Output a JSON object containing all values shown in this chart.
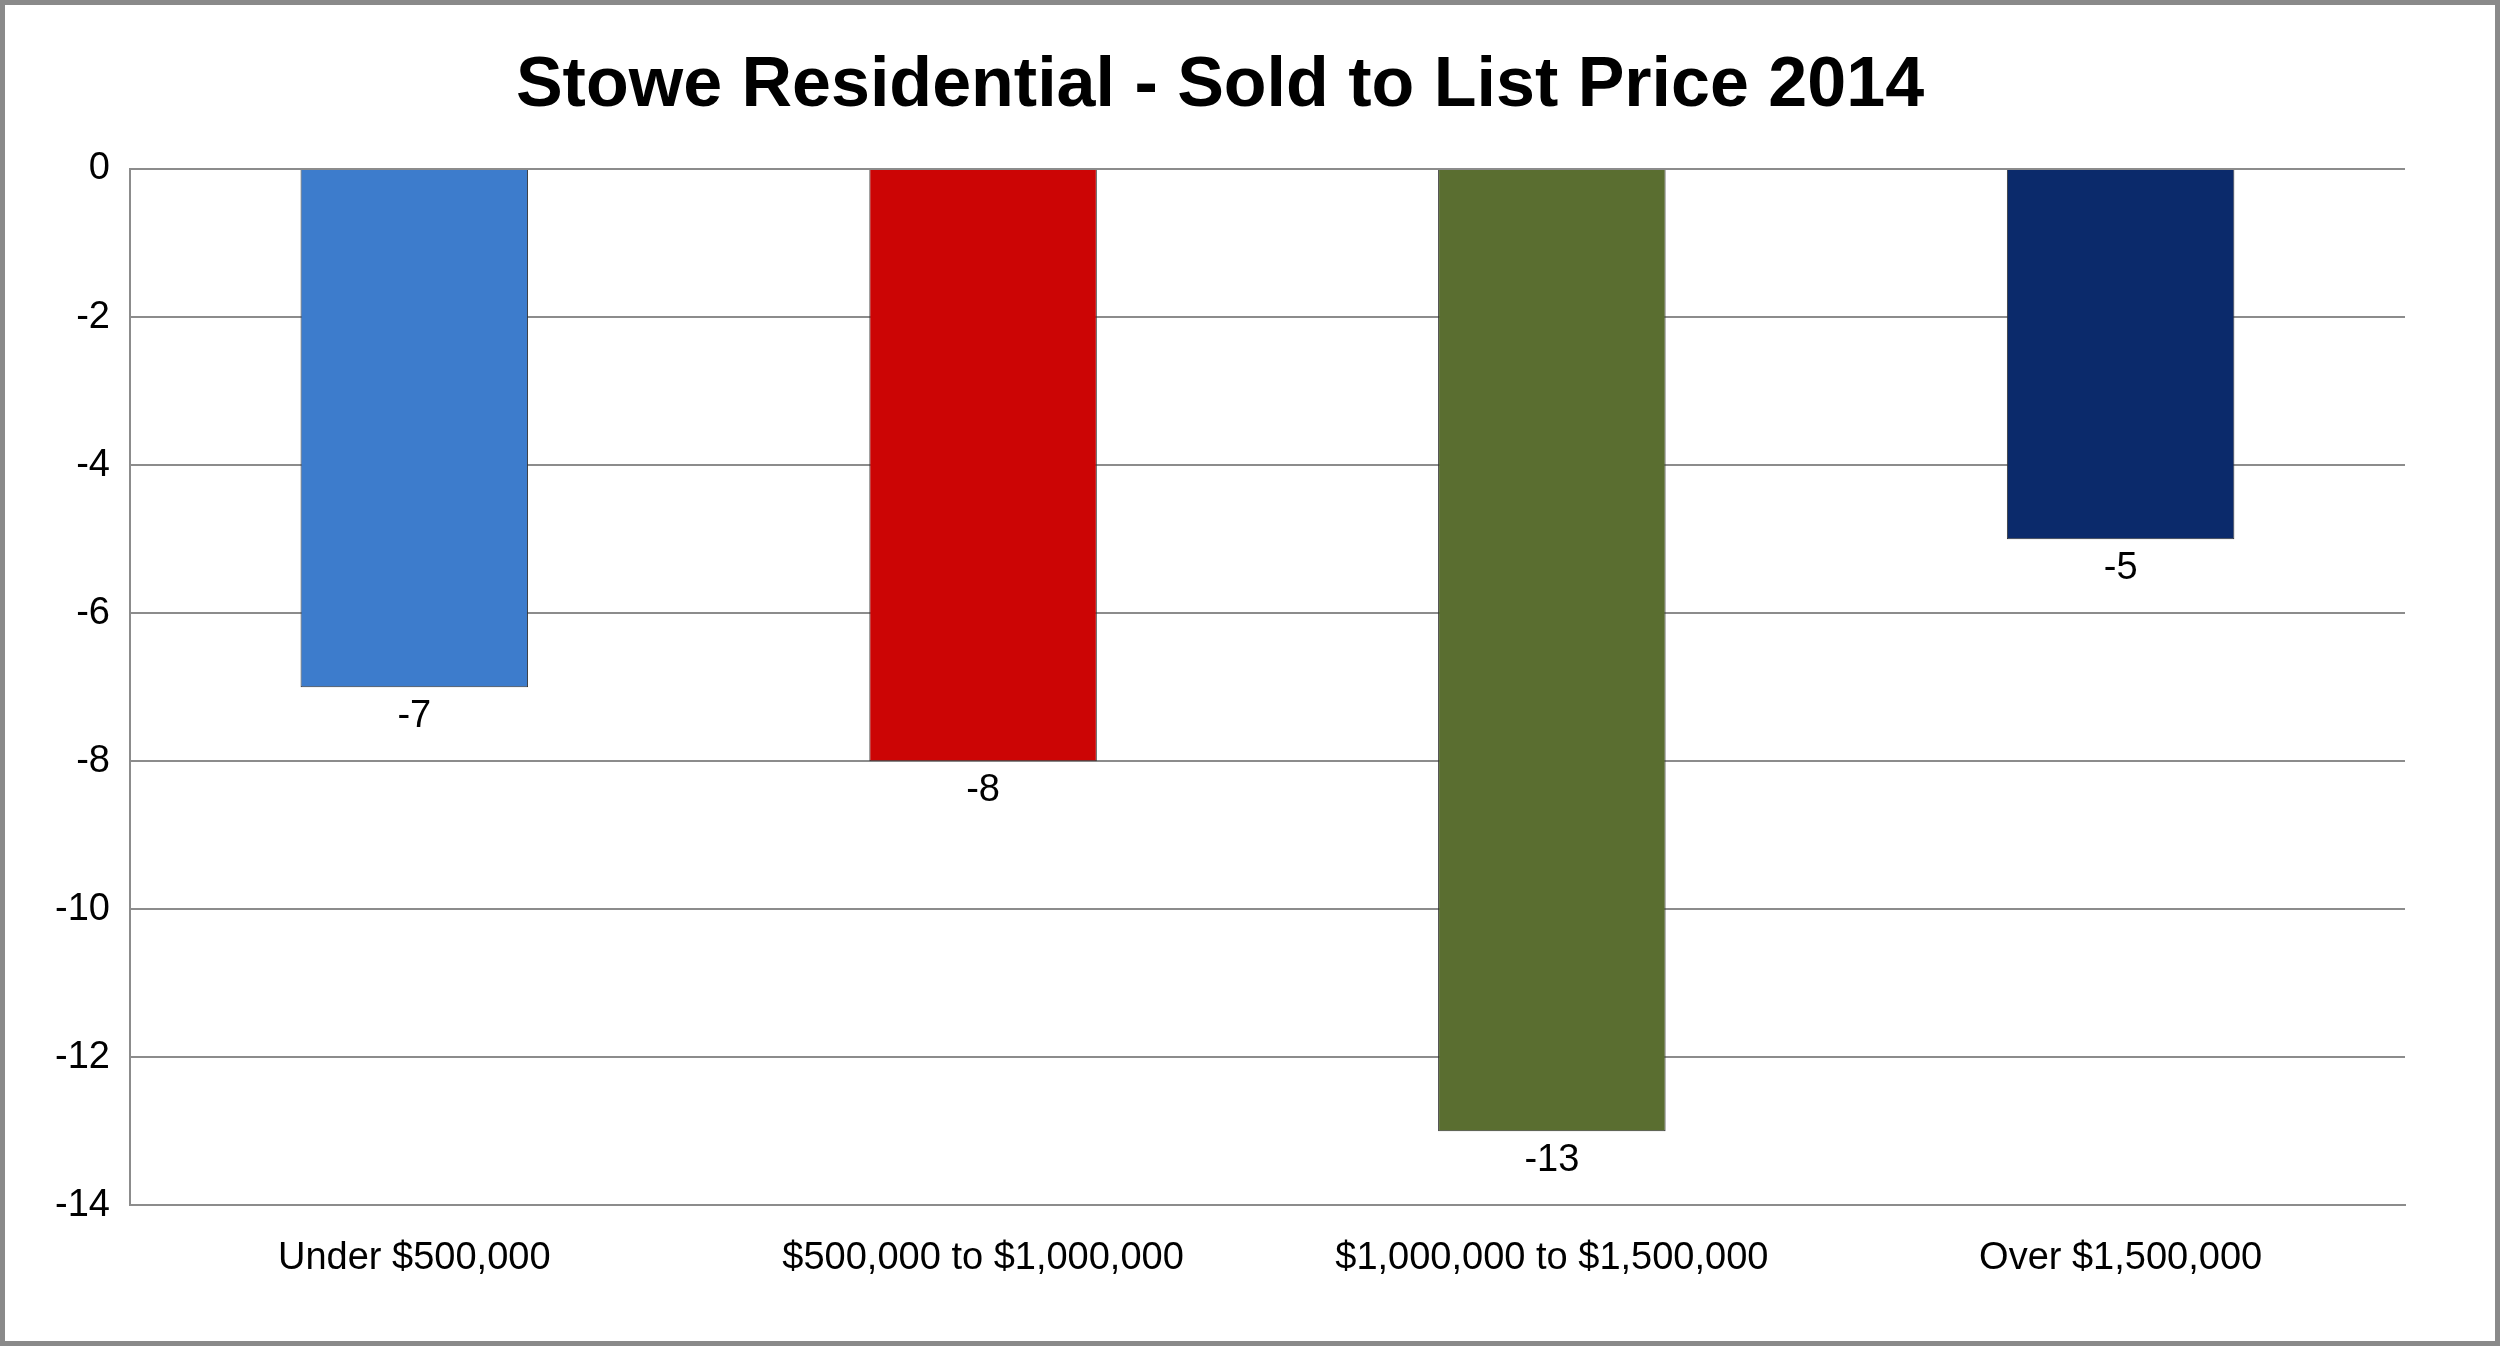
{
  "chart_data": {
    "type": "bar",
    "title": "Stowe Residential - Sold to List Price 2014",
    "categories": [
      "Under $500,000",
      "$500,000 to $1,000,000",
      "$1,000,000 to $1,500,000",
      "Over $1,500,000"
    ],
    "values": [
      -7,
      -8,
      -13,
      -5
    ],
    "colors": [
      "#3d7ccc",
      "#cc0505",
      "#5a6e30",
      "#0b2a6b"
    ],
    "ylim": [
      -14,
      0
    ],
    "yticks": [
      0,
      -2,
      -4,
      -6,
      -8,
      -10,
      -12,
      -14
    ],
    "grid": "y",
    "data_labels": true
  }
}
